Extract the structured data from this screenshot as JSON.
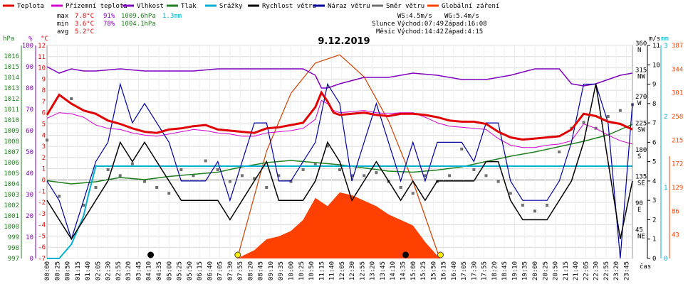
{
  "chart_data": {
    "type": "line",
    "title": "9.12.2019",
    "xlabel": "čas",
    "legend": [
      {
        "name": "Teplota",
        "color": "#e00000"
      },
      {
        "name": "Přízemní teplota",
        "color": "#d000d0"
      },
      {
        "name": "Vlhkost",
        "color": "#8000c0"
      },
      {
        "name": "Tlak",
        "color": "#208020"
      },
      {
        "name": "Srážky",
        "color": "#00b0d0"
      },
      {
        "name": "Rychlost větru",
        "color": "#000000"
      },
      {
        "name": "Náraz větru",
        "color": "#0000a0"
      },
      {
        "name": "Směr větru",
        "color": "#707070"
      },
      {
        "name": "Globální záření",
        "color": "#ff4000"
      }
    ],
    "stats": {
      "max": {
        "label": "max",
        "temp": "7.8°C",
        "hum": "91%",
        "press": "1009.6hPa",
        "rain": "1.3mm"
      },
      "min": {
        "label": "min",
        "temp": "3.6°C",
        "hum": "78%",
        "press": "1004.1hPa"
      },
      "avg": {
        "label": "avg",
        "temp": "5.2°C"
      }
    },
    "wind_info": {
      "ws": "WS:4.5m/s",
      "wg": "WG:5.4m/s"
    },
    "sun": {
      "label": "Slunce",
      "rise": "Východ:07:49",
      "set": "Západ:16:08"
    },
    "moon": {
      "label": "Měsíc",
      "rise": "Východ:14:42",
      "set": "Západ:4:15"
    },
    "axes": {
      "hpa": {
        "label": "hPa",
        "range": [
          997,
          1017
        ],
        "ticks": [
          "997",
          "998",
          "999",
          "1000",
          "1001",
          "1002",
          "1003",
          "1004",
          "1005",
          "1006",
          "1007",
          "1008",
          "1009",
          "1010",
          "1011",
          "1012",
          "1013",
          "1014",
          "1015",
          "1016"
        ]
      },
      "pct": {
        "label": "%",
        "range": [
          0,
          100
        ],
        "ticks": [
          "0",
          "10",
          "20",
          "30",
          "40",
          "50",
          "60",
          "70",
          "80",
          "90",
          "100"
        ]
      },
      "temp": {
        "label": "°C",
        "range": [
          -7,
          12
        ],
        "ticks": [
          "-7",
          "-6",
          "-5",
          "-4",
          "-3",
          "-2",
          "-1",
          "0",
          "1",
          "2",
          "3",
          "4",
          "5",
          "6",
          "7",
          "8",
          "9",
          "10",
          "11",
          "12"
        ]
      },
      "windspeed": {
        "label": "m/s",
        "range": [
          0,
          11
        ],
        "ticks": [
          "0",
          "1",
          "2",
          "3",
          "4",
          "5",
          "6",
          "7",
          "8",
          "9",
          "10",
          "11"
        ]
      },
      "rain": {
        "label": "mm",
        "range": [
          0,
          3
        ],
        "ticks": [
          "0",
          "1",
          "2",
          "3"
        ]
      },
      "dir": {
        "range": [
          0,
          360
        ],
        "ticks": [
          {
            "v": 45,
            "n": "45",
            "d": "NE"
          },
          {
            "v": 90,
            "n": "90",
            "d": "E"
          },
          {
            "v": 135,
            "n": "135",
            "d": "SE"
          },
          {
            "v": 180,
            "n": "180",
            "d": "S"
          },
          {
            "v": 225,
            "n": "225",
            "d": "SW"
          },
          {
            "v": 270,
            "n": "270",
            "d": "W"
          },
          {
            "v": 315,
            "n": "315",
            "d": "NW"
          },
          {
            "v": 360,
            "n": "360",
            "d": "N"
          }
        ]
      },
      "rad": {
        "range": [
          0,
          387
        ],
        "ticks": [
          "43",
          "86",
          "129",
          "172",
          "215",
          "258",
          "301",
          "344",
          "387"
        ]
      }
    },
    "time_labels": [
      "00:00",
      "00:25",
      "00:50",
      "01:15",
      "01:40",
      "02:05",
      "02:30",
      "02:55",
      "03:20",
      "03:45",
      "04:10",
      "04:35",
      "05:00",
      "05:25",
      "05:50",
      "06:15",
      "06:40",
      "07:05",
      "07:30",
      "07:55",
      "08:20",
      "08:45",
      "09:10",
      "09:35",
      "10:00",
      "10:25",
      "10:50",
      "11:15",
      "11:40",
      "12:05",
      "12:30",
      "12:55",
      "13:20",
      "13:45",
      "14:10",
      "14:35",
      "15:00",
      "15:25",
      "15:50",
      "16:15",
      "16:40",
      "17:05",
      "17:30",
      "17:55",
      "18:20",
      "18:45",
      "19:10",
      "19:35",
      "20:00",
      "20:25",
      "20:50",
      "21:15",
      "21:40",
      "22:05",
      "22:30",
      "22:55",
      "23:20",
      "23:45"
    ],
    "series": {
      "temperature": {
        "x": [
          0,
          0.5,
          1,
          1.5,
          2,
          2.5,
          3,
          3.5,
          4,
          4.5,
          5,
          5.5,
          6,
          6.5,
          7,
          7.5,
          8,
          8.5,
          9,
          9.5,
          10,
          10.5,
          11,
          11.25,
          11.5,
          11.75,
          12,
          12.5,
          13,
          13.5,
          14,
          14.5,
          15,
          15.5,
          16,
          16.5,
          17,
          17.5,
          18,
          18.5,
          19,
          19.5,
          20,
          20.5,
          21,
          21.5,
          22,
          22.5,
          23,
          23.5,
          24
        ],
        "y": [
          5.8,
          7.6,
          6.8,
          6.2,
          5.9,
          5.3,
          5.0,
          4.6,
          4.3,
          4.2,
          4.5,
          4.6,
          4.8,
          4.9,
          4.5,
          4.4,
          4.3,
          4.2,
          4.6,
          4.7,
          4.9,
          5.1,
          6.5,
          7.8,
          7.0,
          6.0,
          5.8,
          5.9,
          6.0,
          5.8,
          5.7,
          5.9,
          5.9,
          5.8,
          5.6,
          5.3,
          5.2,
          5.2,
          5.0,
          4.3,
          3.8,
          3.6,
          3.7,
          3.8,
          3.9,
          4.5,
          5.9,
          5.7,
          5.2,
          5.0,
          4.5
        ]
      },
      "ground_temp": {
        "x": [
          0,
          0.5,
          1,
          1.5,
          2,
          2.5,
          3,
          3.5,
          4,
          4.5,
          5,
          5.5,
          6,
          6.5,
          7,
          7.5,
          8,
          8.5,
          9,
          9.5,
          10,
          10.5,
          11,
          11.25,
          11.5,
          11.75,
          12,
          12.5,
          13,
          13.5,
          14,
          14.5,
          15,
          15.5,
          16,
          16.5,
          17,
          17.5,
          18,
          18.5,
          19,
          19.5,
          20,
          20.5,
          21,
          21.5,
          22,
          22.5,
          23,
          23.5,
          24
        ],
        "y": [
          5.5,
          6.0,
          5.9,
          5.6,
          4.9,
          4.6,
          4.5,
          4.2,
          4.0,
          3.9,
          4.1,
          4.3,
          4.5,
          4.4,
          4.2,
          4.1,
          3.9,
          3.9,
          4.2,
          4.3,
          4.4,
          4.6,
          5.4,
          7.1,
          6.8,
          6.2,
          6.0,
          6.1,
          6.2,
          6.0,
          5.9,
          6.0,
          6.0,
          5.6,
          5.1,
          4.8,
          4.7,
          4.6,
          4.5,
          3.7,
          3.1,
          2.9,
          2.9,
          3.1,
          3.2,
          3.5,
          5.0,
          4.6,
          4.0,
          3.5,
          3.2
        ]
      },
      "humidity": {
        "x": [
          0,
          0.5,
          1,
          1.5,
          2,
          3,
          4,
          5,
          6,
          7,
          8,
          9,
          10,
          10.5,
          11,
          11.25,
          11.5,
          12,
          13,
          14,
          15,
          16,
          17,
          18,
          19,
          20,
          21,
          21.5,
          22,
          22.5,
          23,
          23.5,
          24
        ],
        "y": [
          90,
          87,
          89,
          88,
          88,
          89,
          88,
          88,
          88,
          89,
          89,
          89,
          89,
          89,
          86,
          80,
          80,
          82,
          85,
          85,
          87,
          86,
          84,
          84,
          86,
          89,
          89,
          82,
          81,
          82,
          84,
          86,
          87
        ]
      },
      "pressure": {
        "x": [
          0,
          1,
          2,
          3,
          4,
          5,
          6,
          7,
          8,
          9,
          10,
          11,
          12,
          13,
          14,
          15,
          16,
          17,
          18,
          19,
          20,
          21,
          22,
          23,
          24
        ],
        "y": [
          1004.3,
          1004.0,
          1004.2,
          1004.6,
          1004.4,
          1004.7,
          1004.9,
          1005.1,
          1005.6,
          1006.0,
          1006.2,
          1006.0,
          1005.8,
          1005.5,
          1005.2,
          1005.1,
          1005.3,
          1005.6,
          1006.1,
          1006.6,
          1007.0,
          1007.5,
          1008.0,
          1008.6,
          1009.6
        ]
      },
      "rain": {
        "x": [
          0,
          0.5,
          1,
          1.5,
          1.7,
          2,
          24
        ],
        "y": [
          0,
          0,
          0.2,
          0.6,
          0.9,
          1.3,
          1.3
        ]
      },
      "wind_speed": {
        "x": [
          0,
          0.5,
          1,
          1.5,
          2,
          2.5,
          3,
          3.5,
          4,
          4.5,
          5,
          5.5,
          6,
          6.5,
          7,
          7.5,
          8,
          8.5,
          9,
          9.5,
          10,
          10.5,
          11,
          11.5,
          12,
          12.5,
          13,
          13.5,
          14,
          14.5,
          15,
          15.5,
          16,
          16.5,
          17,
          17.5,
          18,
          18.5,
          19,
          19.5,
          20,
          20.5,
          21,
          21.5,
          22,
          22.5,
          23,
          23.5,
          24
        ],
        "y": [
          3,
          2,
          1,
          2,
          3,
          4,
          6,
          5,
          6,
          5,
          4,
          3,
          3,
          3,
          3,
          2,
          3,
          4,
          5,
          3,
          3,
          3,
          4,
          6,
          5,
          3,
          4,
          5,
          4,
          3,
          4,
          3,
          4,
          4,
          4,
          4,
          5,
          5,
          3,
          2,
          2,
          2,
          3,
          4,
          6,
          9,
          5,
          1,
          4
        ]
      },
      "wind_gust": {
        "x": [
          0,
          0.5,
          1,
          1.5,
          2,
          2.5,
          3,
          3.5,
          4,
          4.5,
          5,
          5.5,
          6,
          6.5,
          7,
          7.5,
          8,
          8.5,
          9,
          9.5,
          10,
          10.5,
          11,
          11.5,
          12,
          12.5,
          13,
          13.5,
          14,
          14.5,
          15,
          15.5,
          16,
          16.5,
          17,
          17.5,
          18,
          18.5,
          19,
          19.5,
          20,
          20.5,
          21,
          21.5,
          22,
          22.5,
          23,
          23.5,
          24
        ],
        "y": [
          4,
          3,
          1,
          3,
          5,
          6,
          9,
          7,
          8,
          7,
          6,
          4,
          4,
          4,
          5,
          3,
          5,
          7,
          7,
          4,
          4,
          5,
          6,
          9,
          8,
          4,
          6,
          8,
          6,
          4,
          6,
          4,
          6,
          6,
          6,
          5,
          7,
          7,
          4,
          3,
          3,
          3,
          4,
          6,
          9,
          9,
          7,
          0,
          8
        ]
      },
      "wind_dir": {
        "x": [
          0,
          0.5,
          1,
          1.5,
          2,
          2.5,
          3,
          3.5,
          4,
          4.5,
          5,
          5.5,
          6,
          6.5,
          7,
          7.5,
          8,
          8.5,
          9,
          9.5,
          10,
          10.5,
          11,
          11.5,
          12,
          12.5,
          13,
          13.5,
          14,
          14.5,
          15,
          15.5,
          16,
          16.5,
          17,
          17.5,
          18,
          18.5,
          19,
          19.5,
          20,
          20.5,
          21,
          21.5,
          22,
          22.5,
          23,
          23.5,
          24
        ],
        "y": [
          200,
          105,
          270,
          90,
          120,
          150,
          140,
          160,
          130,
          120,
          110,
          150,
          140,
          165,
          150,
          130,
          140,
          135,
          120,
          140,
          130,
          150,
          160,
          190,
          150,
          140,
          140,
          145,
          130,
          120,
          110,
          140,
          130,
          140,
          185,
          150,
          140,
          130,
          110,
          90,
          80,
          90,
          180,
          220,
          230,
          220,
          240,
          250,
          260
        ]
      },
      "radiation": {
        "x": [
          7.8,
          8.5,
          9,
          9.5,
          10,
          10.5,
          11,
          11.5,
          12,
          12.5,
          13,
          13.5,
          14,
          14.5,
          15,
          15.5,
          16,
          16.1
        ],
        "y": [
          0,
          15,
          35,
          40,
          50,
          70,
          110,
          95,
          120,
          115,
          105,
          95,
          80,
          70,
          60,
          30,
          5,
          0
        ]
      },
      "theoretical_radiation": {
        "x": [
          7.8,
          9,
          10,
          11,
          12,
          13,
          14,
          15,
          16.1
        ],
        "y": [
          0,
          195,
          300,
          355,
          370,
          330,
          250,
          140,
          0
        ]
      }
    },
    "markers": [
      {
        "type": "moonset",
        "time": "4:15",
        "x": 4.25
      },
      {
        "type": "sunrise",
        "time": "07:49",
        "x": 7.82
      },
      {
        "type": "moonrise",
        "time": "14:42",
        "x": 14.7
      },
      {
        "type": "sunset",
        "time": "16:08",
        "x": 16.13
      }
    ]
  }
}
